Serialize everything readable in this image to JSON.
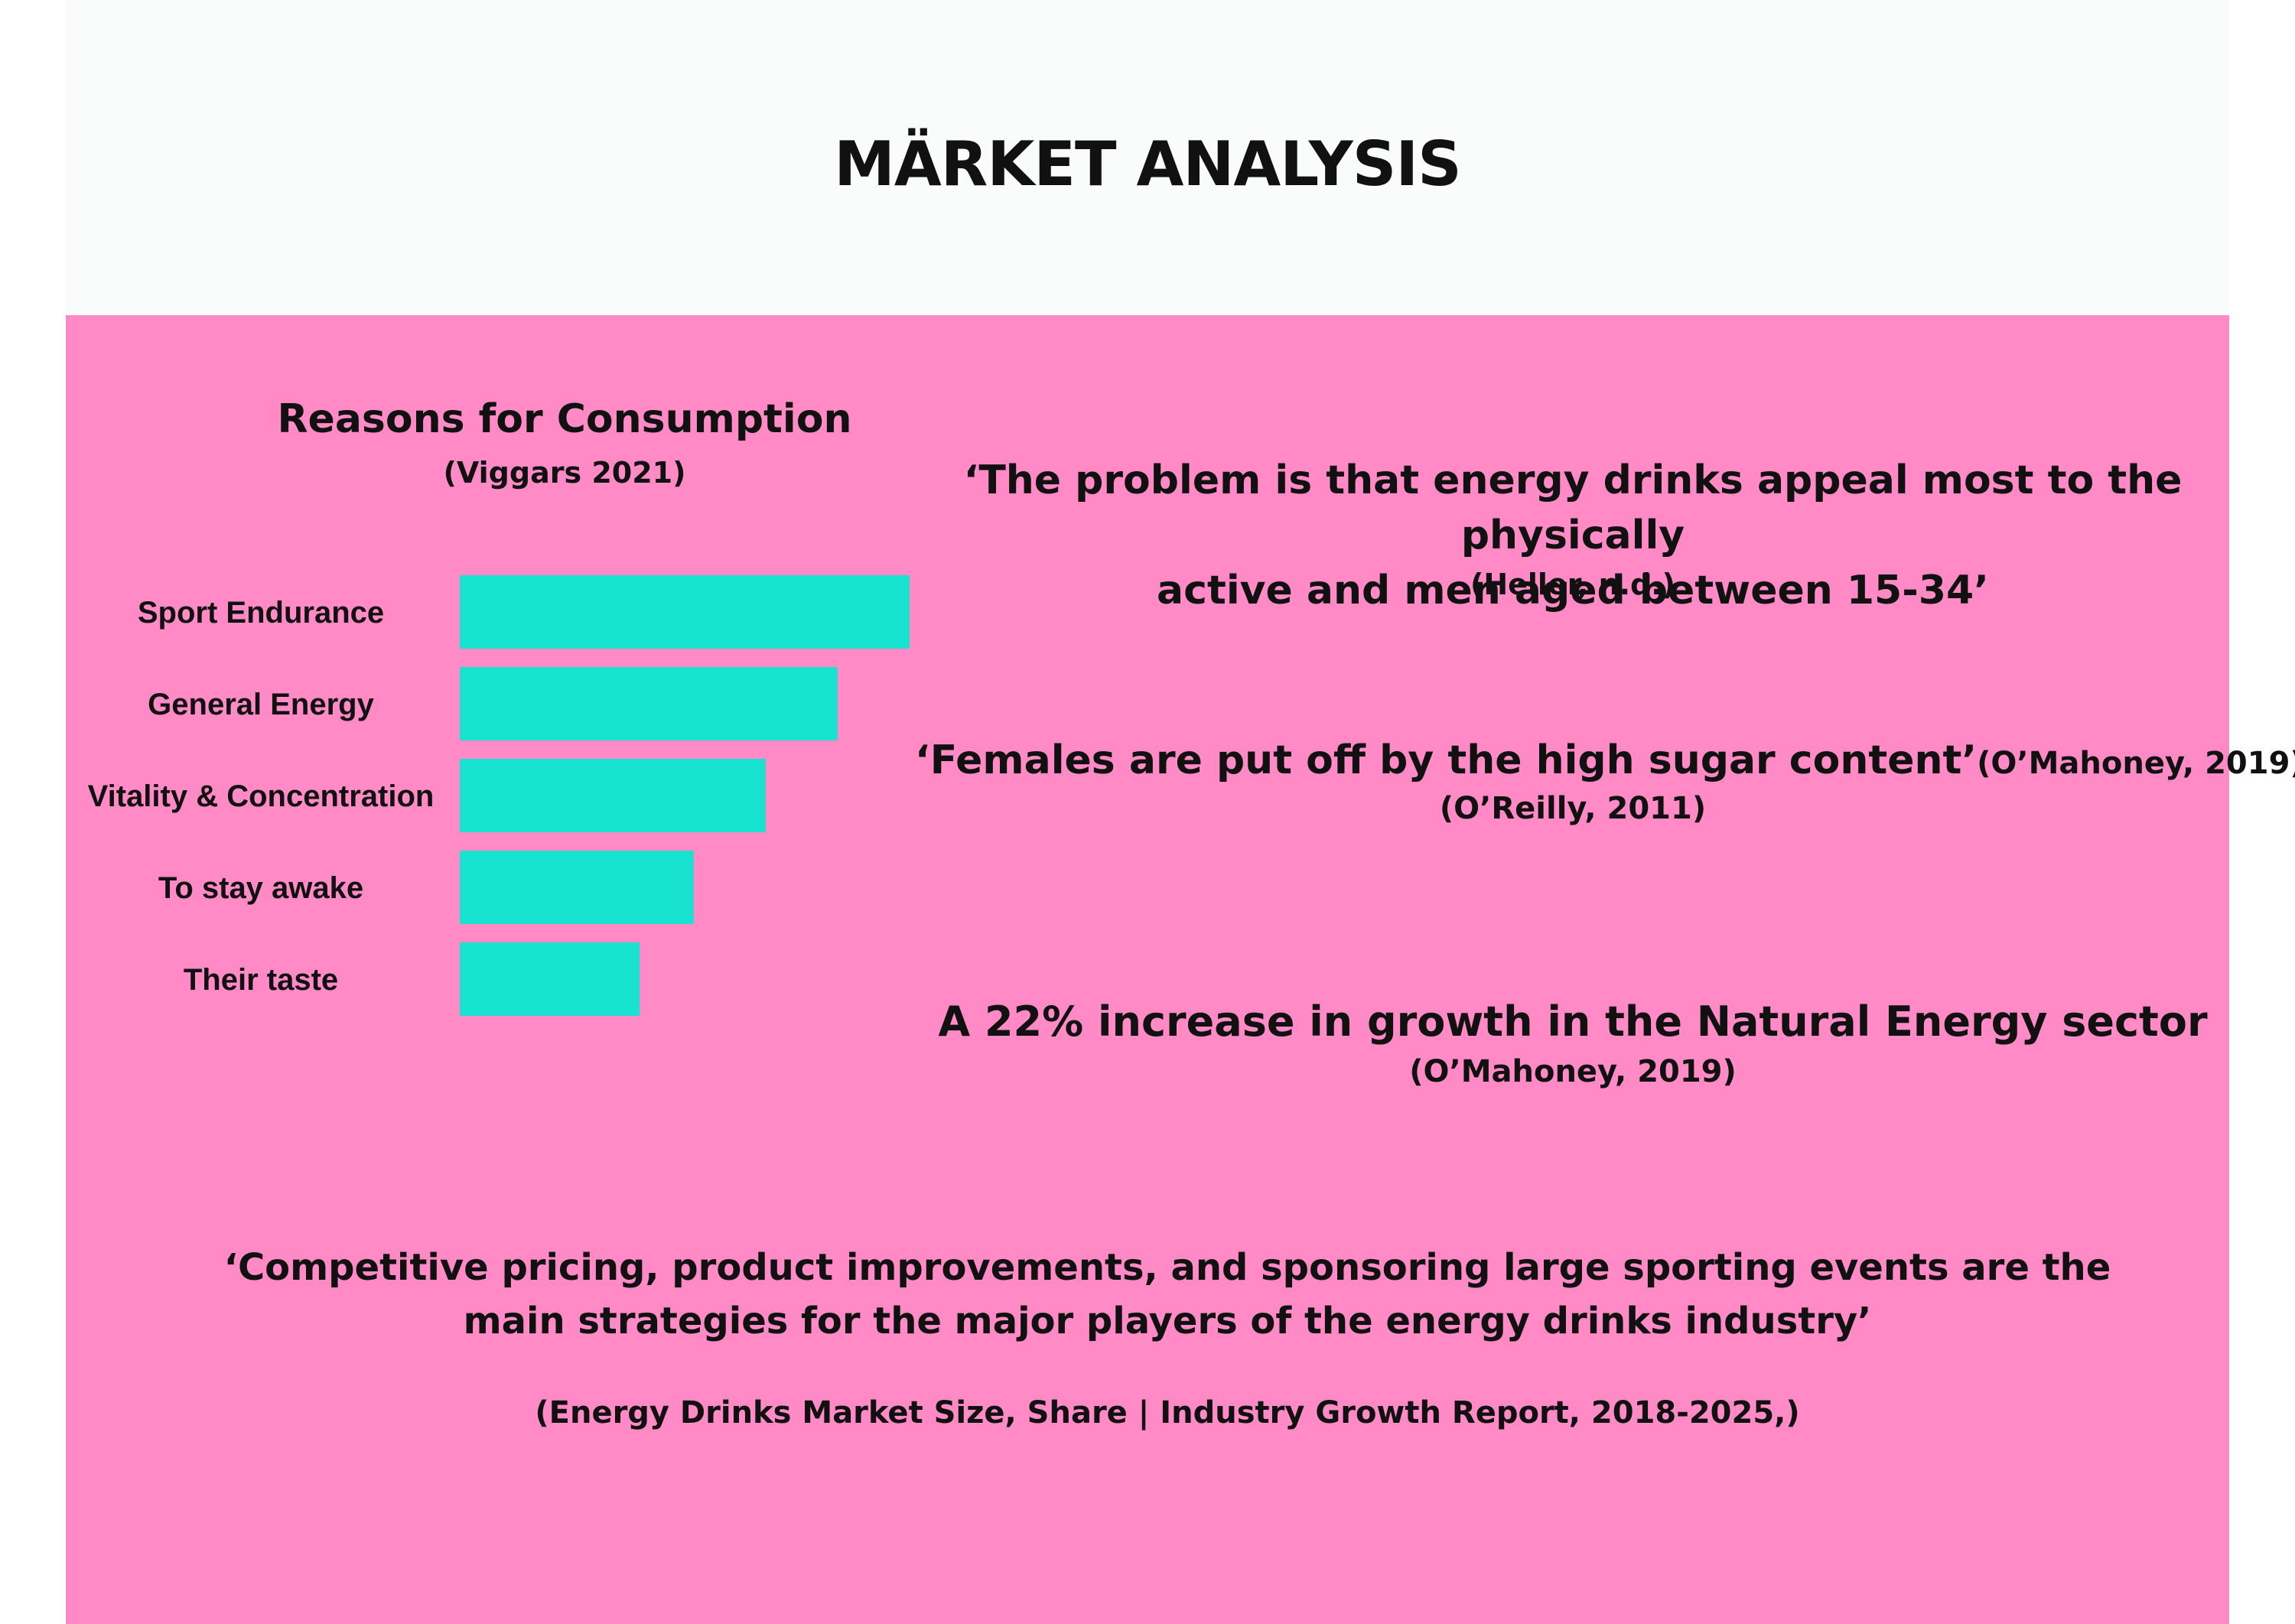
{
  "page_title": "MÄRKET ANALYSIS",
  "colors": {
    "panel": "#ff8ac6",
    "bar": "#17e3d0",
    "header_bg": "#fafcfc"
  },
  "chart_data": {
    "type": "bar",
    "orientation": "horizontal",
    "title": "Reasons for Consumption",
    "subtitle": "(Viggars 2021)",
    "categories": [
      "Sport Endurance",
      "General Energy",
      "Vitality & Concentration",
      "To stay awake",
      "Their taste"
    ],
    "values": [
      100,
      84,
      68,
      52,
      40
    ],
    "xlim": [
      0,
      100
    ],
    "grid": false,
    "legend": "none",
    "axis_ticks_shown": false
  },
  "quotes": [
    {
      "lines": [
        "‘The problem is that energy drinks appeal most to the physically",
        "active and men aged between 15-34’"
      ],
      "source": "(Heller, n.d.)"
    },
    {
      "text": "‘Females are put off by the high sugar content’",
      "inline_source": "(O’Mahoney, 2019)",
      "source": "(O’Reilly, 2011)"
    },
    {
      "text": "A 22% increase in growth in the Natural Energy sector",
      "source": "(O’Mahoney, 2019)"
    },
    {
      "lines": [
        "‘Competitive pricing,  product improvements, and sponsoring large sporting events are the",
        "main strategies for the major players of the energy drinks industry’"
      ],
      "source": "(Energy Drinks Market Size, Share | Industry Growth Report, 2018-2025,)"
    }
  ]
}
